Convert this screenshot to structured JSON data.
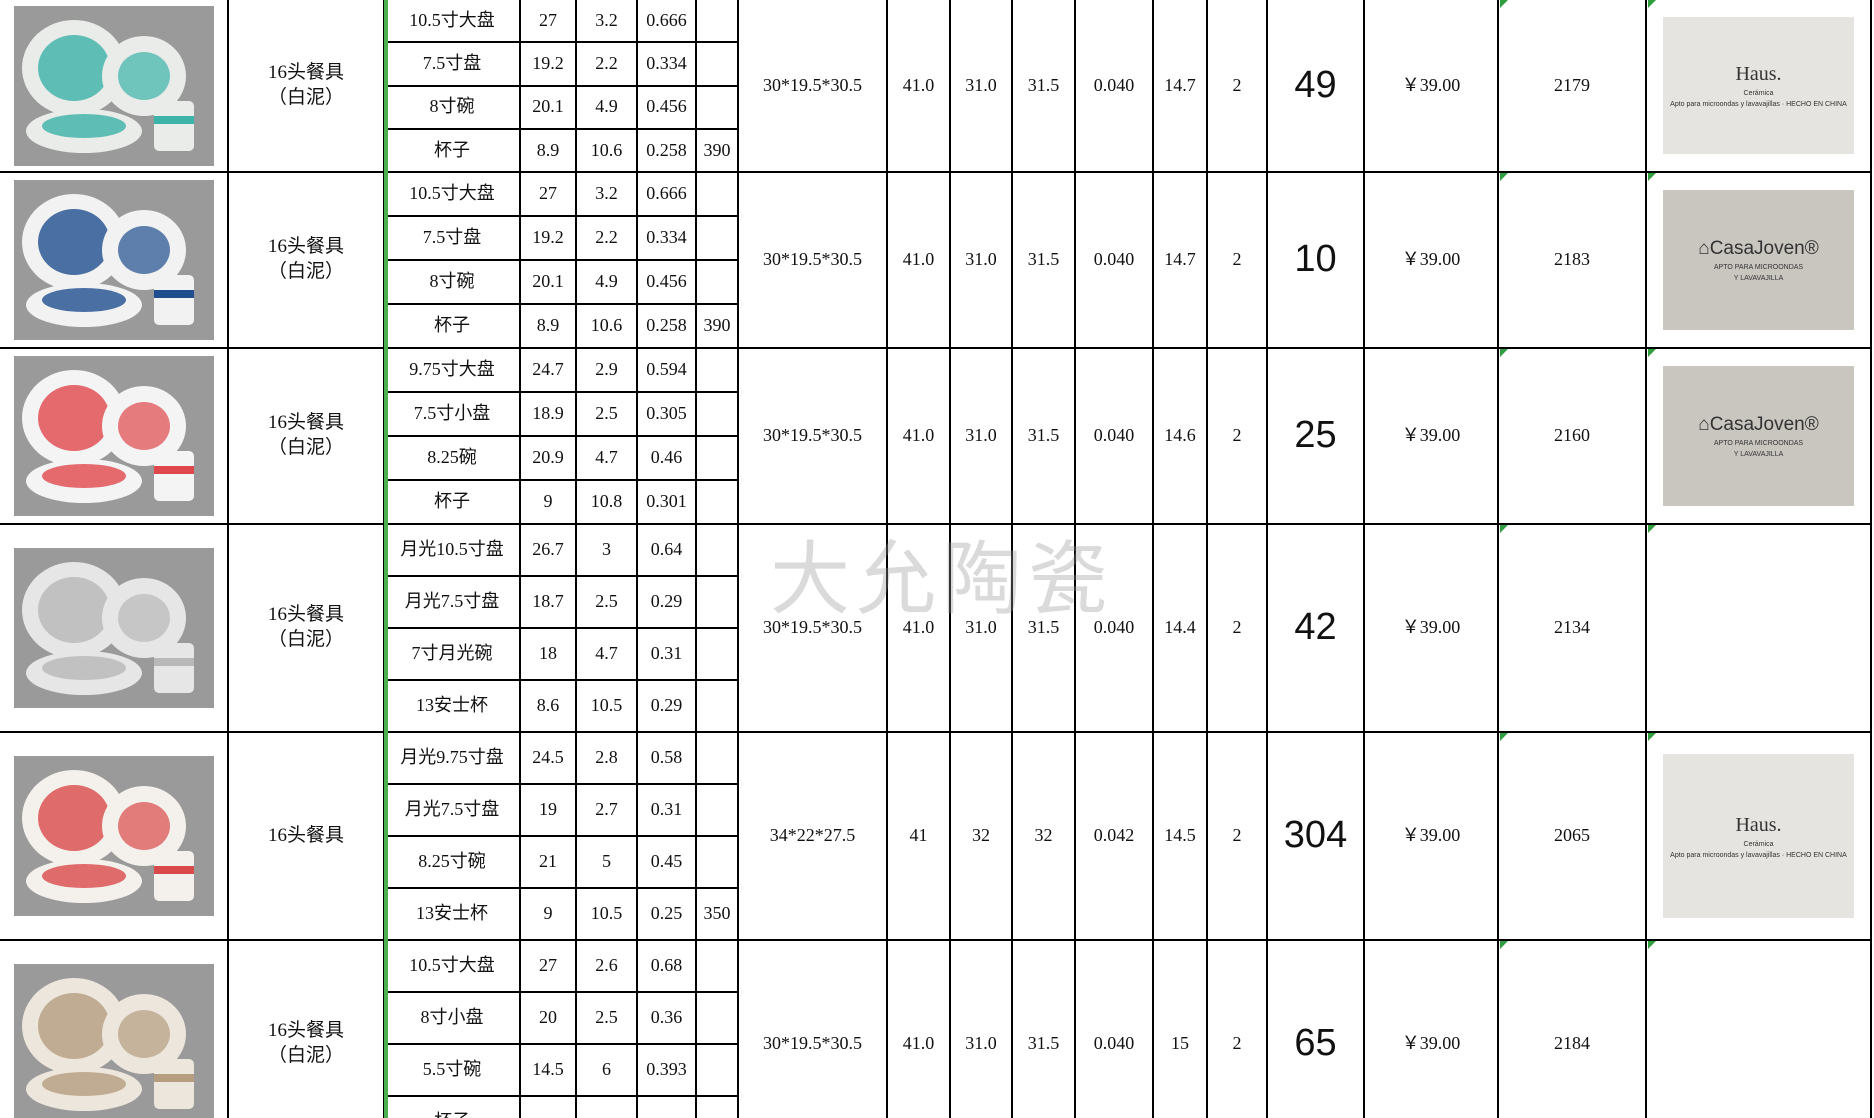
{
  "watermark": "大允陶瓷",
  "colors": {
    "green_border": "#4caf50",
    "comment_marker": "#2e9e3e"
  },
  "rows": [
    {
      "photo": {
        "icon": "teal-dinnerware-photo",
        "colors": [
          "#3bb3a8",
          "#e9ece8"
        ]
      },
      "name": "16头餐具\n（白泥）",
      "parts": [
        [
          "10.5寸大盘",
          "27",
          "3.2",
          "0.666",
          ""
        ],
        [
          "7.5寸盘",
          "19.2",
          "2.2",
          "0.334",
          ""
        ],
        [
          "8寸碗",
          "20.1",
          "4.9",
          "0.456",
          ""
        ],
        [
          "杯子",
          "8.9",
          "10.6",
          "0.258",
          "390"
        ]
      ],
      "carton": "30*19.5*30.5",
      "v1": "41.0",
      "v2": "31.0",
      "v3": "31.5",
      "cbm": "0.040",
      "weight": "14.7",
      "n": "2",
      "qty": "49",
      "price": "￥39.00",
      "code": "2179",
      "logo": {
        "type": "haus",
        "brand": "Haus.",
        "sub": "Cerámica",
        "note": "Apto para microondas y lavavajillas · HECHO EN CHINA"
      }
    },
    {
      "photo": {
        "icon": "blue-stripe-dinnerware-photo",
        "colors": [
          "#1f4f8f",
          "#f2f2f2"
        ]
      },
      "name": "16头餐具\n（白泥）",
      "parts": [
        [
          "10.5寸大盘",
          "27",
          "3.2",
          "0.666",
          ""
        ],
        [
          "7.5寸盘",
          "19.2",
          "2.2",
          "0.334",
          ""
        ],
        [
          "8寸碗",
          "20.1",
          "4.9",
          "0.456",
          ""
        ],
        [
          "杯子",
          "8.9",
          "10.6",
          "0.258",
          "390"
        ]
      ],
      "carton": "30*19.5*30.5",
      "v1": "41.0",
      "v2": "31.0",
      "v3": "31.5",
      "cbm": "0.040",
      "weight": "14.7",
      "n": "2",
      "qty": "10",
      "price": "￥39.00",
      "code": "2183",
      "logo": {
        "type": "casajoven",
        "brand": "⌂CasaJoven®",
        "sub": "APTO PARA MICROONDAS",
        "note": "Y LAVAVAJILLA"
      }
    },
    {
      "photo": {
        "icon": "red-stripe-dinnerware-photo",
        "colors": [
          "#e0474c",
          "#f4f4f4"
        ]
      },
      "name": "16头餐具\n（白泥）",
      "parts": [
        [
          "9.75寸大盘",
          "24.7",
          "2.9",
          "0.594",
          ""
        ],
        [
          "7.5寸小盘",
          "18.9",
          "2.5",
          "0.305",
          ""
        ],
        [
          "8.25碗",
          "20.9",
          "4.7",
          "0.46",
          ""
        ],
        [
          "杯子",
          "9",
          "10.8",
          "0.301",
          ""
        ]
      ],
      "carton": "30*19.5*30.5",
      "v1": "41.0",
      "v2": "31.0",
      "v3": "31.5",
      "cbm": "0.040",
      "weight": "14.6",
      "n": "2",
      "qty": "25",
      "price": "￥39.00",
      "code": "2160",
      "logo": {
        "type": "casajoven",
        "brand": "⌂CasaJoven®",
        "sub": "APTO PARA MICROONDAS",
        "note": "Y LAVAVAJILLA"
      }
    },
    {
      "photo": {
        "icon": "grey-dinnerware-photo",
        "colors": [
          "#b8b8b8",
          "#e6e6e6"
        ]
      },
      "name": "16头餐具\n（白泥）",
      "parts": [
        [
          "月光10.5寸盘",
          "26.7",
          "3",
          "0.64",
          ""
        ],
        [
          "月光7.5寸盘",
          "18.7",
          "2.5",
          "0.29",
          ""
        ],
        [
          "7寸月光碗",
          "18",
          "4.7",
          "0.31",
          ""
        ],
        [
          "13安士杯",
          "8.6",
          "10.5",
          "0.29",
          ""
        ]
      ],
      "carton": "30*19.5*30.5",
      "v1": "41.0",
      "v2": "31.0",
      "v3": "31.5",
      "cbm": "0.040",
      "weight": "14.4",
      "n": "2",
      "qty": "42",
      "price": "￥39.00",
      "code": "2134",
      "logo": null
    },
    {
      "photo": {
        "icon": "floral-dinnerware-photo",
        "colors": [
          "#d94a4a",
          "#f4f1ec"
        ]
      },
      "name": "16头餐具",
      "parts": [
        [
          "月光9.75寸盘",
          "24.5",
          "2.8",
          "0.58",
          ""
        ],
        [
          "月光7.5寸盘",
          "19",
          "2.7",
          "0.31",
          ""
        ],
        [
          "8.25寸碗",
          "21",
          "5",
          "0.45",
          ""
        ],
        [
          "13安士杯",
          "9",
          "10.5",
          "0.25",
          "350"
        ]
      ],
      "carton": "34*22*27.5",
      "v1": "41",
      "v2": "32",
      "v3": "32",
      "cbm": "0.042",
      "weight": "14.5",
      "n": "2",
      "qty": "304",
      "price": "￥39.00",
      "code": "2065",
      "logo": {
        "type": "haus",
        "brand": "Haus.",
        "sub": "Cerámica",
        "note": "Apto para microondas y lavavajillas · HECHO EN CHINA"
      }
    },
    {
      "photo": {
        "icon": "beige-dinnerware-photo",
        "colors": [
          "#b59d80",
          "#ece6dc"
        ]
      },
      "name": "16头餐具\n（白泥）",
      "parts": [
        [
          "10.5寸大盘",
          "27",
          "2.6",
          "0.68",
          ""
        ],
        [
          "8寸小盘",
          "20",
          "2.5",
          "0.36",
          ""
        ],
        [
          "5.5寸碗",
          "14.5",
          "6",
          "0.393",
          ""
        ],
        [
          "杯子",
          "",
          "",
          "",
          ""
        ]
      ],
      "carton": "30*19.5*30.5",
      "v1": "41.0",
      "v2": "31.0",
      "v3": "31.5",
      "cbm": "0.040",
      "weight": "15",
      "n": "2",
      "qty": "65",
      "price": "￥39.00",
      "code": "2184",
      "logo": null
    }
  ]
}
